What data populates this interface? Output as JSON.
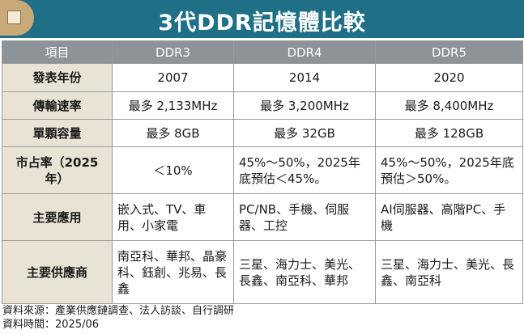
{
  "title": "3代DDR記憶體比較",
  "colors": {
    "banner": "#1f6f86",
    "tab": "#c9a978",
    "header": "#8c9399",
    "rowhead": "#e9e3d6"
  },
  "header": [
    "項目",
    "DDR3",
    "DDR4",
    "DDR5"
  ],
  "rows": [
    {
      "label": "發表年份",
      "cells": [
        "2007",
        "2014",
        "2020"
      ]
    },
    {
      "label": "傳輸速率",
      "cells": [
        "最多 2,133MHz",
        "最多 3,200MHz",
        "最多 8,400MHz"
      ]
    },
    {
      "label": "單顆容量",
      "cells": [
        "最多 8GB",
        "最多 32GB",
        "最多 128GB"
      ]
    },
    {
      "label": "市占率（2025年）",
      "cells": [
        "＜10%",
        "45%～50%，2025年底預估＜45%。",
        "45%～50%，2025年底預估＞50%。"
      ]
    },
    {
      "label": "主要應用",
      "cells": [
        "嵌入式、TV、車用、小家電",
        "PC/NB、手機、伺服器、工控",
        "AI伺服器、高階PC、手機"
      ]
    },
    {
      "label": "主要供應商",
      "cells": [
        "南亞科、華邦、晶豪科、鈺創、兆易、長鑫",
        "三星、海力士、美光、長鑫、南亞科、華邦",
        "三星、海力士、美光、長鑫、南亞科"
      ]
    }
  ],
  "footer": {
    "source": "資料來源：產業供應鏈調查、法人訪談、自行調研",
    "date": "資料時間：2025/06"
  }
}
